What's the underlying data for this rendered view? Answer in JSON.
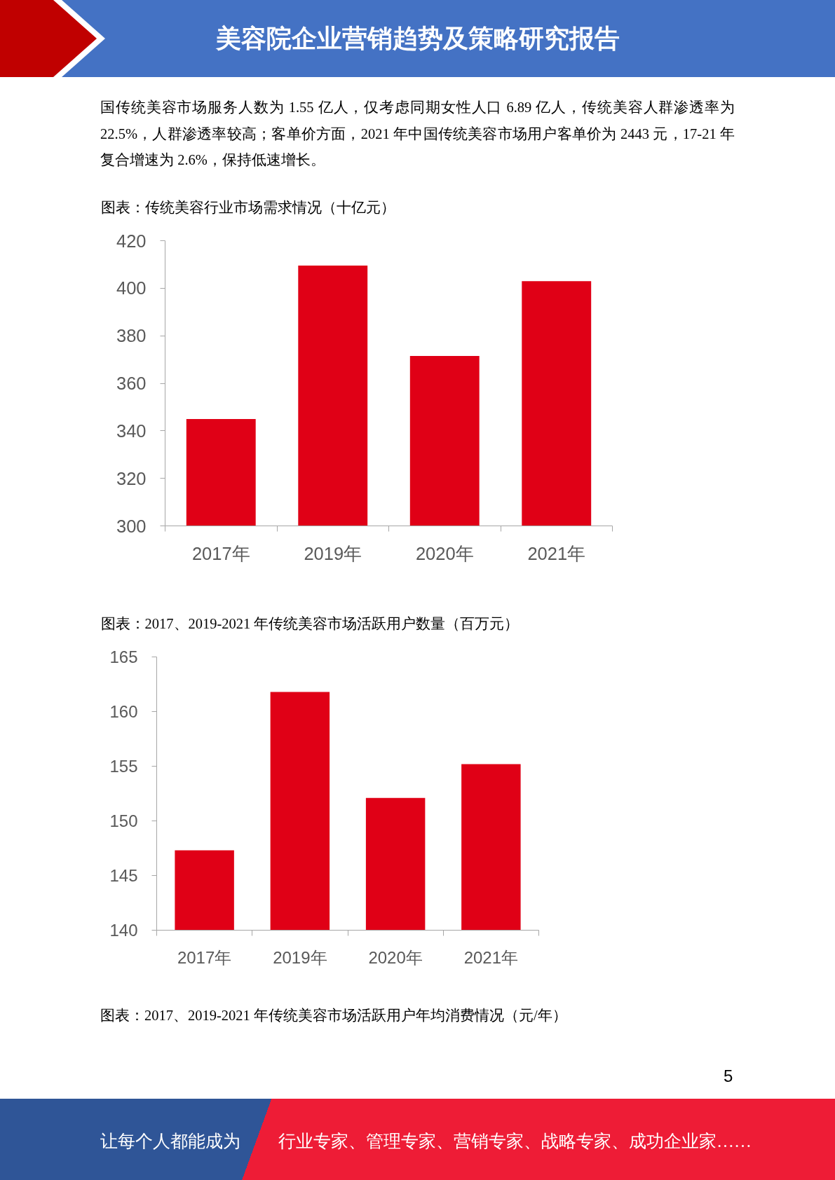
{
  "chart_data": [
    {
      "type": "bar",
      "title": "图表：传统美容行业市场需求情况（十亿元）",
      "categories": [
        "2017年",
        "2019年",
        "2020年",
        "2021年"
      ],
      "values": [
        345,
        409.5,
        371.5,
        403
      ],
      "color": "#e00016",
      "ylim": [
        300,
        420
      ],
      "yticks": [
        300,
        320,
        340,
        360,
        380,
        400,
        420
      ],
      "annotations": [
        "美容院企业营销趋势及策略研究报告",
        "国传统美容市场服务人数为 1.55 亿人，仅考虑同期女性人口 6.89 亿人，传统美容人群渗透率为 22.5%，人群渗透率较高；客单价方面，2021 年中国传统美容市场用户客单价为 2443 元，17-21 年复合增速为 2.6%，保持低速增长。"
      ]
    },
    {
      "type": "bar",
      "title": "图表：2017、2019-2021 年传统美容市场活跃用户数量（百万元）",
      "categories": [
        "2017年",
        "2019年",
        "2020年",
        "2021年"
      ],
      "values": [
        147.3,
        161.8,
        152.1,
        155.2
      ],
      "color": "#e00016",
      "ylim": [
        140,
        165
      ],
      "yticks": [
        140,
        145,
        150,
        155,
        160,
        165
      ],
      "annotations": [
        "图表：2017、2019-2021 年传统美容市场活跃用户年均消费情况（元/年）",
        "5",
        "让每个人都能成为",
        "行业专家、管理专家、营销专家、战略专家、成功企业家……"
      ]
    }
  ]
}
